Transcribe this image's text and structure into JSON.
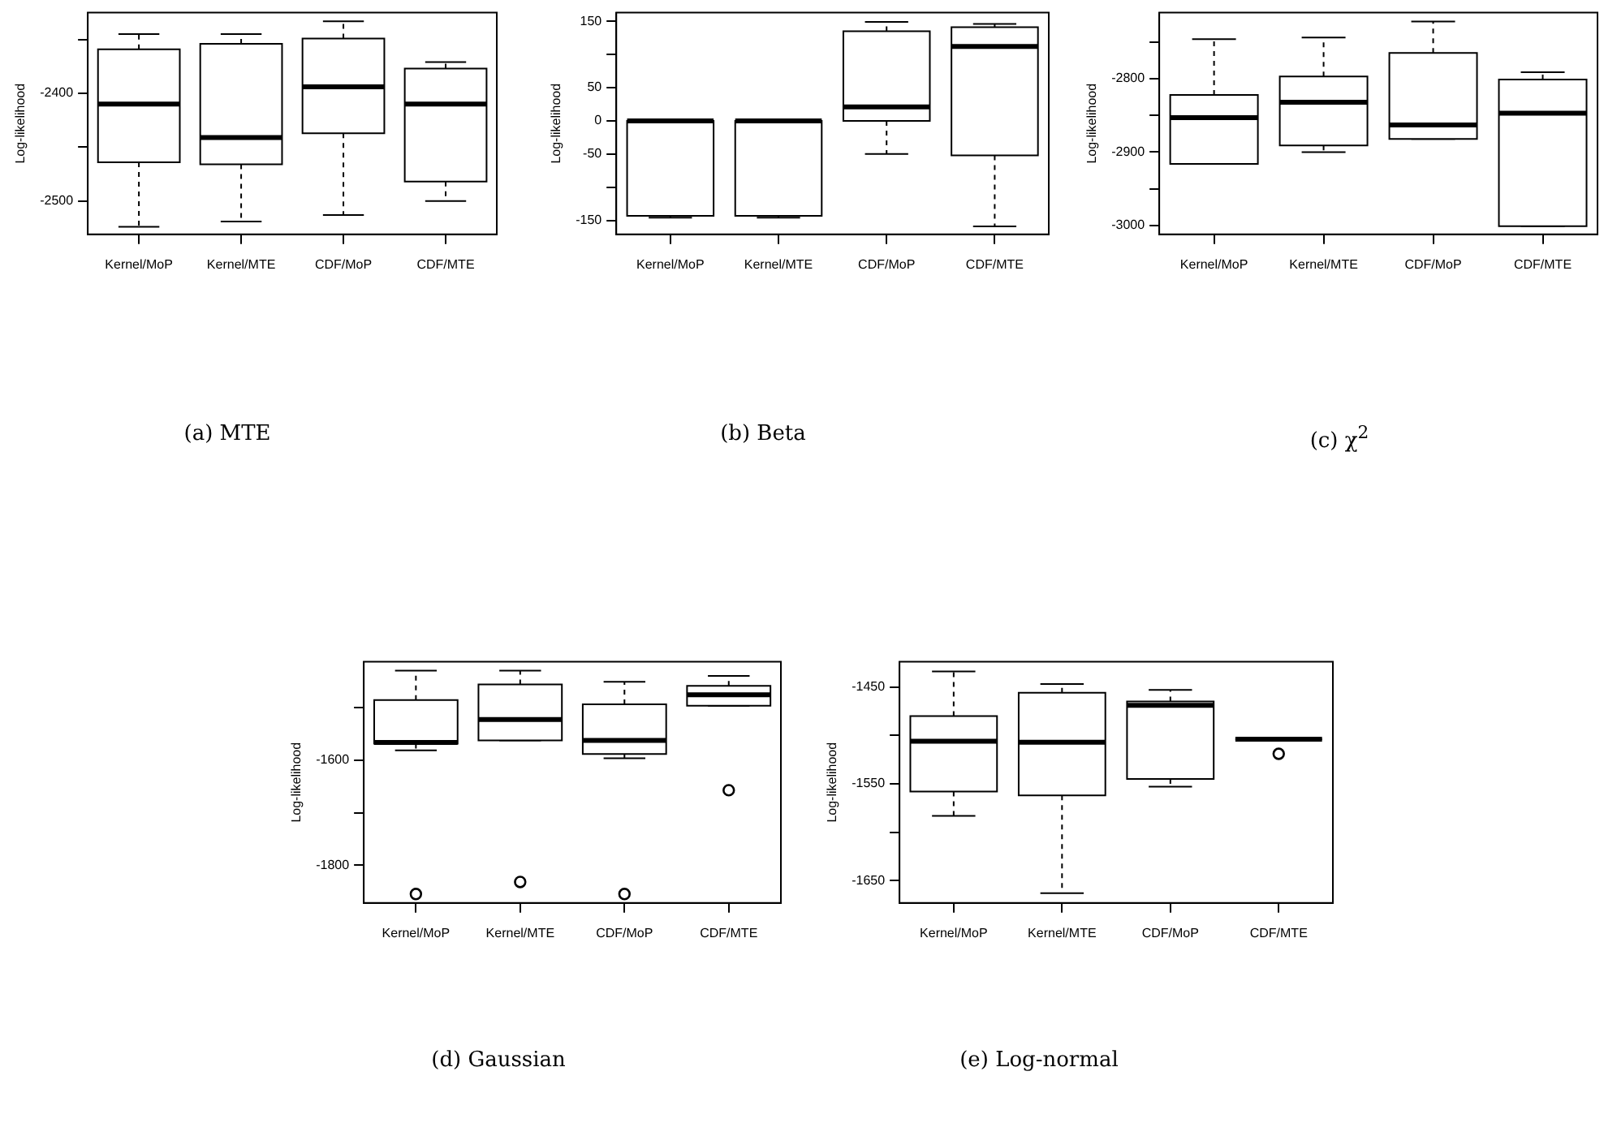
{
  "chart_data": [
    {
      "type": "box",
      "title": "(a) MTE",
      "ylabel": "Log-likelihood",
      "categories": [
        "Kernel/MoP",
        "Kernel/MTE",
        "CDF/MoP",
        "CDF/MTE"
      ],
      "boxes": [
        {
          "low": -2524,
          "q1": -2464,
          "median": -2410,
          "q3": -2359,
          "high": -2345
        },
        {
          "low": -2519,
          "q1": -2466,
          "median": -2441,
          "q3": -2354,
          "high": -2345
        },
        {
          "low": -2513,
          "q1": -2437,
          "median": -2394,
          "q3": -2349,
          "high": -2333
        },
        {
          "low": -2500,
          "q1": -2482,
          "median": -2410,
          "q3": -2377,
          "high": -2371
        }
      ],
      "ylim": [
        -2531,
        -2325
      ],
      "yticks": [
        {
          "value": -2350,
          "label": null
        },
        -2400,
        {
          "value": -2450,
          "label": null
        },
        -2500
      ]
    },
    {
      "type": "box",
      "title": "(b) Beta",
      "ylabel": "Log-likelihood",
      "categories": [
        "Kernel/MoP",
        "Kernel/MTE",
        "CDF/MoP",
        "CDF/MTE"
      ],
      "boxes": [
        {
          "low": -146,
          "q1": -143,
          "median": 0,
          "q3": 0,
          "high": 0
        },
        {
          "low": -146,
          "q1": -143,
          "median": 0,
          "q3": 0,
          "high": 0
        },
        {
          "low": -50,
          "q1": 0,
          "median": 21,
          "q3": 135,
          "high": 149
        },
        {
          "low": -159,
          "q1": -52,
          "median": 112,
          "q3": 141,
          "high": 146
        }
      ],
      "ylim": [
        -171,
        163
      ],
      "yticks": [
        150,
        {
          "value": 100,
          "label": null
        },
        50,
        0,
        -50,
        {
          "value": -100,
          "label": null
        },
        -150
      ]
    },
    {
      "type": "box",
      "title": "(c) χ$^{2}$",
      "ylabel": "Log-likelihood",
      "categories": [
        "Kernel/MoP",
        "Kernel/MTE",
        "CDF/MoP",
        "CDF/MTE"
      ],
      "boxes": [
        {
          "low": -2916,
          "q1": -2916,
          "median": -2853,
          "q3": -2822,
          "high": -2746
        },
        {
          "low": -2900,
          "q1": -2891,
          "median": -2832,
          "q3": -2797,
          "high": -2744
        },
        {
          "low": -2882,
          "q1": -2882,
          "median": -2863,
          "q3": -2765,
          "high": -2722
        },
        {
          "low": -3001,
          "q1": -3001,
          "median": -2847,
          "q3": -2801,
          "high": -2791
        }
      ],
      "ylim": [
        -3012,
        -2710
      ],
      "yticks": [
        {
          "value": -2750,
          "label": null
        },
        -2800,
        {
          "value": -2850,
          "label": null
        },
        -2900,
        {
          "value": -2950,
          "label": null
        },
        -3000
      ]
    },
    {
      "type": "box",
      "title": "(d) Gaussian",
      "ylabel": "Log-likelihood",
      "categories": [
        "Kernel/MoP",
        "Kernel/MTE",
        "CDF/MoP",
        "CDF/MTE"
      ],
      "boxes": [
        {
          "low": -1581,
          "q1": -1568,
          "median": -1566,
          "q3": -1485,
          "high": -1429,
          "outliers": [
            -1855
          ]
        },
        {
          "low": -1562,
          "q1": -1562,
          "median": -1522,
          "q3": -1455,
          "high": -1429,
          "outliers": [
            -1832
          ]
        },
        {
          "low": -1596,
          "q1": -1588,
          "median": -1562,
          "q3": -1493,
          "high": -1450,
          "outliers": [
            -1855
          ]
        },
        {
          "low": -1496,
          "q1": -1496,
          "median": -1475,
          "q3": -1458,
          "high": -1439,
          "outliers": [
            -1657
          ]
        }
      ],
      "ylim": [
        -1872,
        -1412
      ],
      "yticks": [
        {
          "value": -1500,
          "label": null
        },
        -1600,
        {
          "value": -1700,
          "label": null
        },
        -1800
      ]
    },
    {
      "type": "box",
      "title": "(e) Log-normal",
      "ylabel": "Log-likelihood",
      "categories": [
        "Kernel/MoP",
        "Kernel/MTE",
        "CDF/MoP",
        "CDF/MTE"
      ],
      "boxes": [
        {
          "low": -1583,
          "q1": -1558,
          "median": -1506,
          "q3": -1480,
          "high": -1434
        },
        {
          "low": -1663,
          "q1": -1562,
          "median": -1507,
          "q3": -1456,
          "high": -1447
        },
        {
          "low": -1553,
          "q1": -1545,
          "median": -1469,
          "q3": -1465,
          "high": -1453
        },
        {
          "low": -1504,
          "q1": -1504,
          "median": -1504,
          "q3": -1504,
          "high": -1504,
          "outliers": [
            -1519
          ]
        }
      ],
      "ylim": [
        -1673,
        -1424
      ],
      "yticks": [
        -1450,
        {
          "value": -1500,
          "label": null
        },
        -1550,
        {
          "value": -1600,
          "label": null
        },
        -1650
      ]
    }
  ]
}
